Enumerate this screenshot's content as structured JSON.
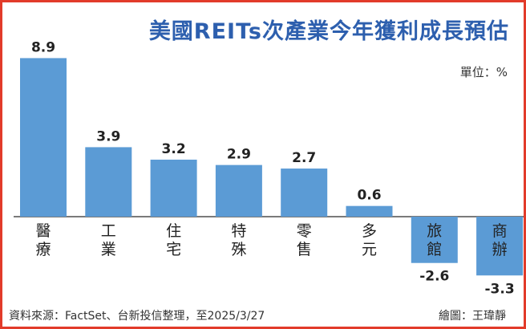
{
  "chart_data": {
    "type": "bar",
    "title": "美國REITs次產業今年獲利成長預估",
    "unit_label": "單位：%",
    "categories": [
      "醫療",
      "工業",
      "住宅",
      "特殊",
      "零售",
      "多元",
      "旅館",
      "商辦"
    ],
    "values": [
      8.9,
      3.9,
      3.2,
      2.9,
      2.7,
      0.6,
      -2.6,
      -3.3
    ],
    "value_labels": [
      "8.9",
      "3.9",
      "3.2",
      "2.9",
      "2.7",
      "0.6",
      "-2.6",
      "-3.3"
    ],
    "bar_color": "#5b9bd5",
    "axis_color": "#7a7a7a",
    "xlabel": "",
    "ylabel": "",
    "ylim": [
      -3.3,
      8.9
    ],
    "grid": false,
    "legend": "none"
  },
  "footer": {
    "source": "資料來源：FactSet、台新投信整理，至2025/3/27",
    "credit": "繪圖：王瑋靜"
  },
  "colors": {
    "border": "#e23b2a",
    "title": "#2d5fae"
  }
}
